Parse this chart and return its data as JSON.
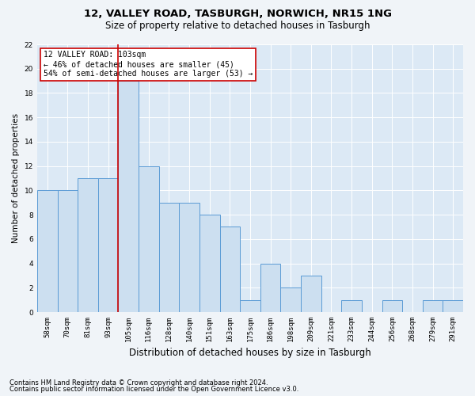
{
  "title1": "12, VALLEY ROAD, TASBURGH, NORWICH, NR15 1NG",
  "title2": "Size of property relative to detached houses in Tasburgh",
  "xlabel": "Distribution of detached houses by size in Tasburgh",
  "ylabel": "Number of detached properties",
  "footer1": "Contains HM Land Registry data © Crown copyright and database right 2024.",
  "footer2": "Contains public sector information licensed under the Open Government Licence v3.0.",
  "annotation_line1": "12 VALLEY ROAD: 103sqm",
  "annotation_line2": "← 46% of detached houses are smaller (45)",
  "annotation_line3": "54% of semi-detached houses are larger (53) →",
  "bar_labels": [
    "58sqm",
    "70sqm",
    "81sqm",
    "93sqm",
    "105sqm",
    "116sqm",
    "128sqm",
    "140sqm",
    "151sqm",
    "163sqm",
    "175sqm",
    "186sqm",
    "198sqm",
    "209sqm",
    "221sqm",
    "233sqm",
    "244sqm",
    "256sqm",
    "268sqm",
    "279sqm",
    "291sqm"
  ],
  "bar_values": [
    10,
    10,
    11,
    11,
    19,
    12,
    9,
    9,
    8,
    7,
    1,
    4,
    2,
    3,
    0,
    1,
    0,
    1,
    0,
    1,
    1
  ],
  "bar_color": "#ccdff0",
  "bar_edge_color": "#5b9bd5",
  "red_line_x": 3.5,
  "ylim_max": 22,
  "ytick_step": 2,
  "bg_color": "#dce9f5",
  "grid_color": "#ffffff",
  "fig_bg_color": "#f0f4f8",
  "title1_fontsize": 9.5,
  "title2_fontsize": 8.5,
  "ylabel_fontsize": 7.5,
  "xlabel_fontsize": 8.5,
  "tick_fontsize": 6.5,
  "ann_fontsize": 7,
  "footer_fontsize": 6
}
